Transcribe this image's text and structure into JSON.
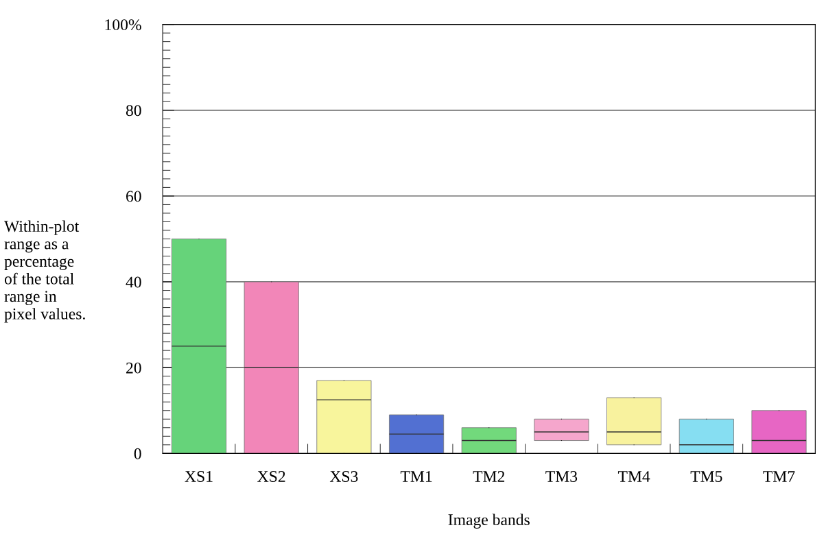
{
  "chart_data": {
    "type": "box",
    "xlabel": "Image bands",
    "ylabel": "Within-plot\nrange as a\npercentage\nof the total\nrange in\npixel values.",
    "categories": [
      "XS1",
      "XS2",
      "XS3",
      "TM1",
      "TM2",
      "TM3",
      "TM4",
      "TM5",
      "TM7"
    ],
    "colors": [
      "#66d37a",
      "#f286b8",
      "#f8f59c",
      "#5270d2",
      "#72d97c",
      "#f5a6cc",
      "#f8f29e",
      "#86def2",
      "#e766c4"
    ],
    "boxes": [
      {
        "low": 0,
        "q1": 0,
        "median": 25,
        "q3": 50,
        "high": 50
      },
      {
        "low": 0,
        "q1": 0,
        "median": 20,
        "q3": 40,
        "high": 40
      },
      {
        "low": 0,
        "q1": 0,
        "median": 12.5,
        "q3": 17,
        "high": 17
      },
      {
        "low": 0,
        "q1": 0,
        "median": 4.5,
        "q3": 9,
        "high": 9
      },
      {
        "low": 0,
        "q1": 0,
        "median": 3,
        "q3": 6,
        "high": 6
      },
      {
        "low": 3,
        "q1": 3,
        "median": 5,
        "q3": 8,
        "high": 8
      },
      {
        "low": 2,
        "q1": 2,
        "median": 5,
        "q3": 13,
        "high": 13
      },
      {
        "low": 0,
        "q1": 0,
        "median": 2,
        "q3": 8,
        "high": 8
      },
      {
        "low": 0,
        "q1": 0,
        "median": 3,
        "q3": 10,
        "high": 10
      }
    ],
    "ylim": [
      0,
      100
    ],
    "yticks": [
      0,
      20,
      40,
      60,
      80,
      {
        "value": 100,
        "label": "100%"
      }
    ],
    "grid": "y"
  }
}
